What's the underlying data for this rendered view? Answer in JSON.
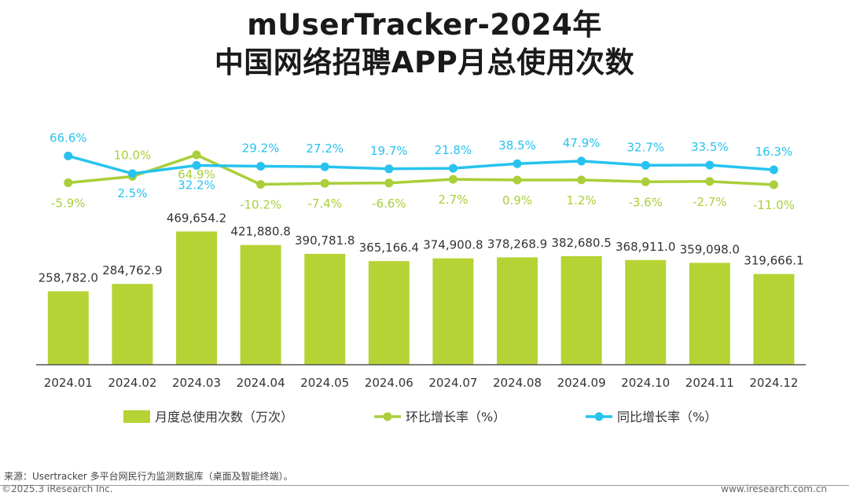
{
  "title_line1": "mUserTracker-2024年",
  "title_line2": "中国网络招聘APP月总使用次数",
  "colors": {
    "bar": "#b5d334",
    "mom": "#a9cf3a",
    "yoy": "#27c3ee",
    "axis": "#555555"
  },
  "chart_data": {
    "type": "bar",
    "categories": [
      "2024.01",
      "2024.02",
      "2024.03",
      "2024.04",
      "2024.05",
      "2024.06",
      "2024.07",
      "2024.08",
      "2024.09",
      "2024.10",
      "2024.11",
      "2024.12"
    ],
    "series": [
      {
        "name": "月度总使用次数（万次）",
        "type": "bar",
        "values": [
          258782.0,
          284762.9,
          469654.2,
          421880.8,
          390781.8,
          365166.4,
          374900.8,
          378268.9,
          382680.5,
          368911.0,
          359098.0,
          319666.1
        ],
        "labels": [
          "258,782.0",
          "284,762.9",
          "469,654.2",
          "421,880.8",
          "390,781.8",
          "365,166.4",
          "374,900.8",
          "378,268.9",
          "382,680.5",
          "368,911.0",
          "359,098.0",
          "319,666.1"
        ]
      },
      {
        "name": "环比增长率（%）",
        "type": "line",
        "values": [
          -5.9,
          10.0,
          64.9,
          -10.2,
          -7.4,
          -6.6,
          2.7,
          0.9,
          1.2,
          -3.6,
          -2.7,
          -11.0
        ],
        "labels": [
          "-5.9%",
          "10.0%",
          "64.9%",
          "-10.2%",
          "-7.4%",
          "-6.6%",
          "2.7%",
          "0.9%",
          "1.2%",
          "-3.6%",
          "-2.7%",
          "-11.0%"
        ]
      },
      {
        "name": "同比增长率（%）",
        "type": "line",
        "values": [
          66.6,
          2.5,
          32.2,
          29.2,
          27.2,
          19.7,
          21.8,
          38.5,
          47.9,
          32.7,
          33.5,
          16.3
        ],
        "labels": [
          "66.6%",
          "2.5%",
          "32.2%",
          "29.2%",
          "27.2%",
          "19.7%",
          "21.8%",
          "38.5%",
          "47.9%",
          "32.7%",
          "33.5%",
          "16.3%"
        ]
      }
    ],
    "ylim": [
      0,
      500000
    ],
    "legend_position": "bottom"
  },
  "source_note": "来源：Usertracker 多平台网民行为监测数据库（桌面及智能终端）。",
  "copyright": "©2025.3 iResearch Inc.",
  "website": "www.iresearch.com.cn"
}
